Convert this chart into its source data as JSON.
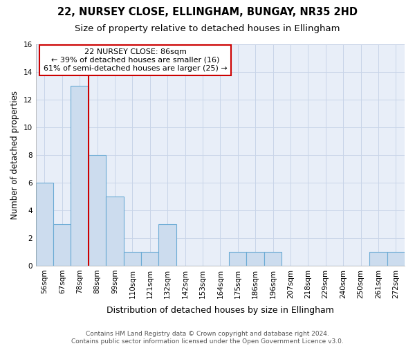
{
  "title1": "22, NURSEY CLOSE, ELLINGHAM, BUNGAY, NR35 2HD",
  "title2": "Size of property relative to detached houses in Ellingham",
  "xlabel": "Distribution of detached houses by size in Ellingham",
  "ylabel": "Number of detached properties",
  "categories": [
    "56sqm",
    "67sqm",
    "78sqm",
    "88sqm",
    "99sqm",
    "110sqm",
    "121sqm",
    "132sqm",
    "142sqm",
    "153sqm",
    "164sqm",
    "175sqm",
    "186sqm",
    "196sqm",
    "207sqm",
    "218sqm",
    "229sqm",
    "240sqm",
    "250sqm",
    "261sqm",
    "272sqm"
  ],
  "values": [
    6,
    3,
    13,
    8,
    5,
    1,
    1,
    3,
    0,
    0,
    0,
    1,
    1,
    1,
    0,
    0,
    0,
    0,
    0,
    1,
    1
  ],
  "bar_color": "#ccdcee",
  "bar_edge_color": "#6aaad4",
  "vline_x": 2.5,
  "vline_color": "#cc0000",
  "annotation_text": "22 NURSEY CLOSE: 86sqm\n← 39% of detached houses are smaller (16)\n61% of semi-detached houses are larger (25) →",
  "annotation_box_color": "#ffffff",
  "annotation_box_edge": "#cc0000",
  "ylim": [
    0,
    16
  ],
  "yticks": [
    0,
    2,
    4,
    6,
    8,
    10,
    12,
    14,
    16
  ],
  "grid_color": "#c8d4e8",
  "bg_color": "#e8eef8",
  "footer1": "Contains HM Land Registry data © Crown copyright and database right 2024.",
  "footer2": "Contains public sector information licensed under the Open Government Licence v3.0.",
  "title1_fontsize": 10.5,
  "title2_fontsize": 9.5,
  "xlabel_fontsize": 9,
  "ylabel_fontsize": 8.5,
  "tick_fontsize": 7.5,
  "annotation_fontsize": 8,
  "footer_fontsize": 6.5
}
